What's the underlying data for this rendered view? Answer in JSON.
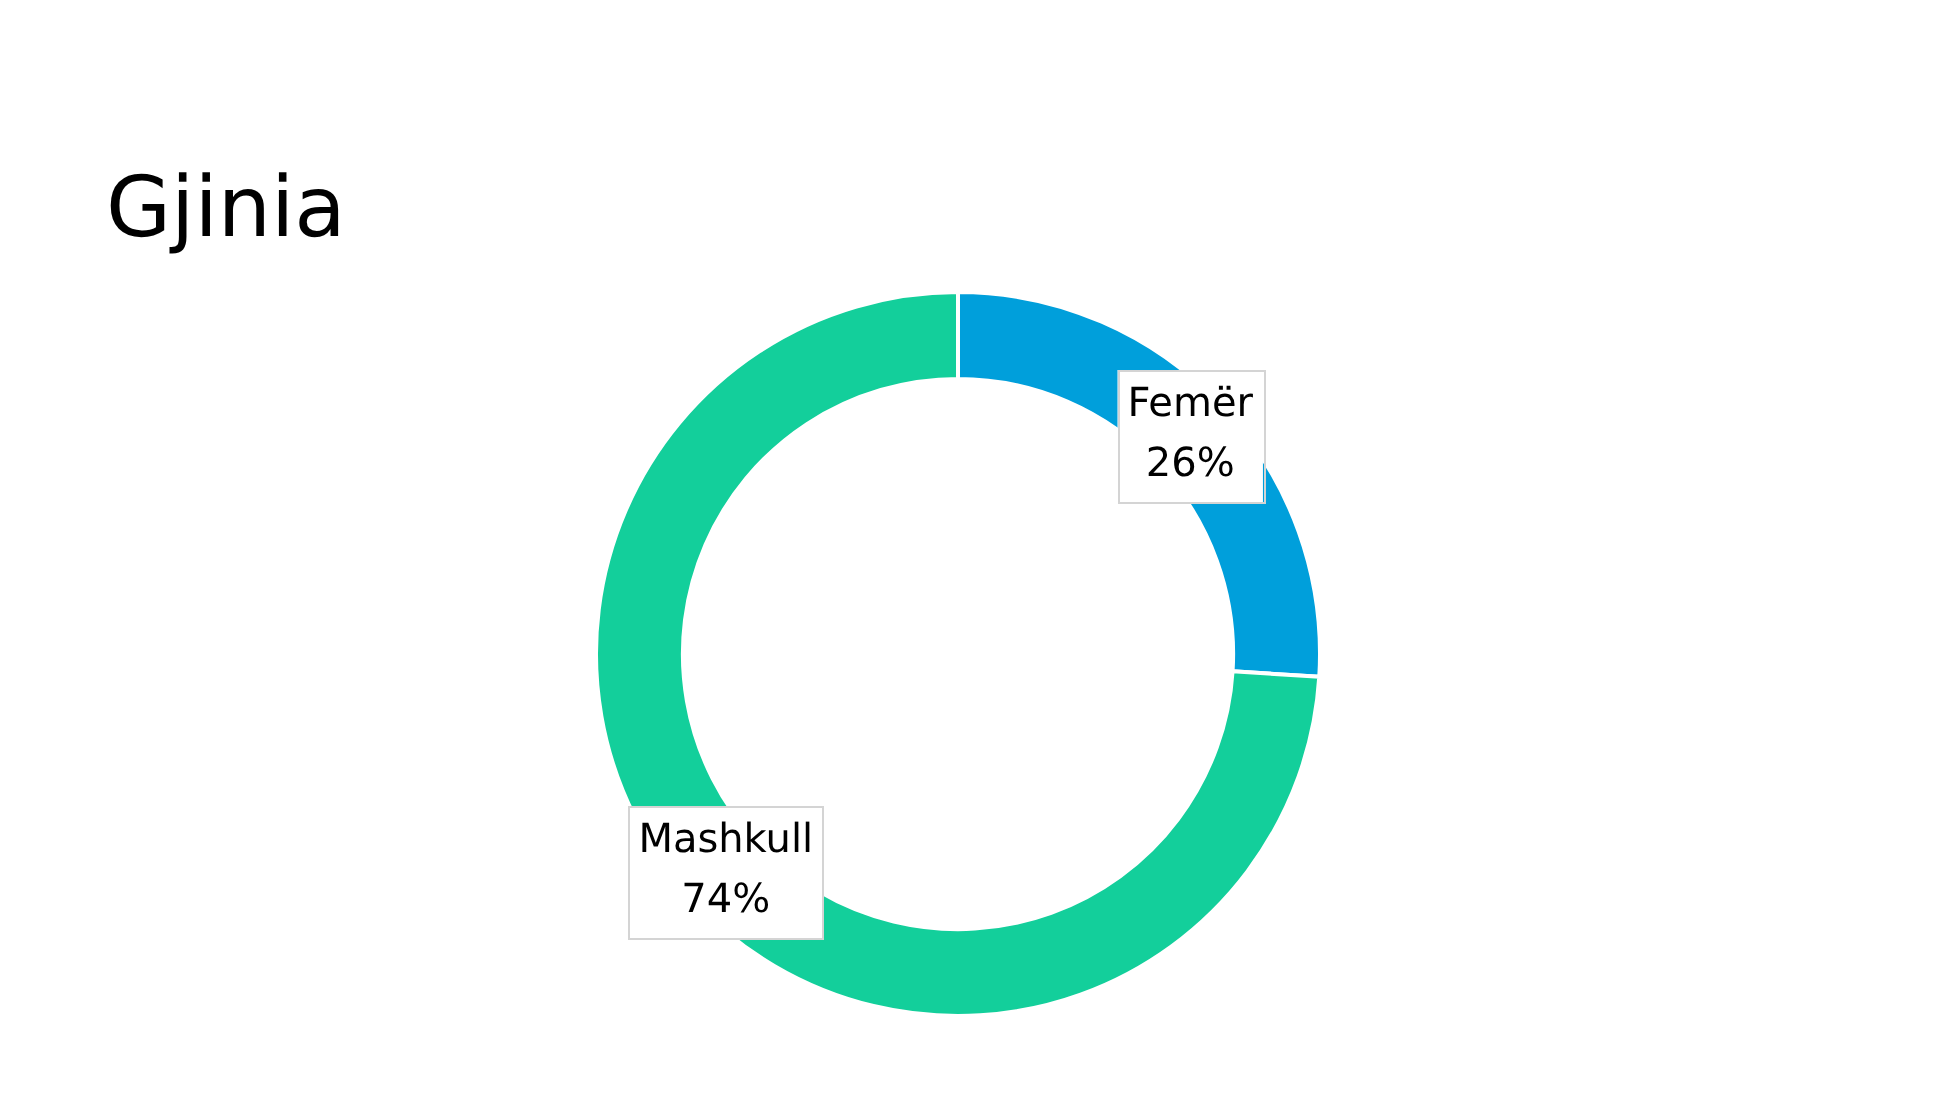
{
  "chart_data": {
    "type": "donut",
    "title": "Gjinia",
    "categories": [
      "Femër",
      "Mashkull"
    ],
    "values": [
      26,
      74
    ],
    "colors": [
      "#009fdb",
      "#13cf9b"
    ],
    "value_labels": [
      "26%",
      "74%"
    ],
    "legend": false
  }
}
